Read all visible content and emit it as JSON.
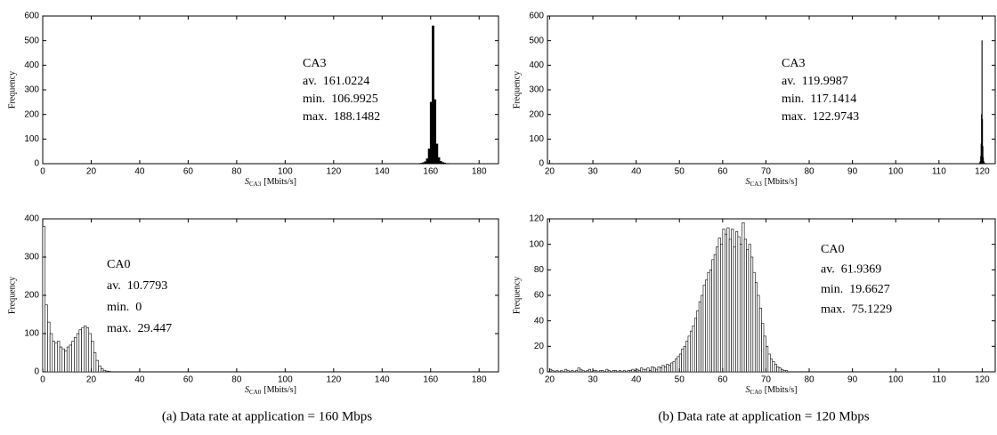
{
  "captions": [
    "(a) Data rate at application = 160 Mbps",
    "(b) Data rate at application = 120 Mbps"
  ],
  "chart_data": [
    {
      "type": "histogram",
      "ylabel": "Frequency",
      "xlabel_symbol": "S",
      "xlabel_subscript": "CA3",
      "xlabel_unit": "[Mbits/s]",
      "annotations": [
        "CA3",
        "av.  161.0224",
        "min.  106.9925",
        "max.  188.1482"
      ],
      "xlim": [
        0,
        188
      ],
      "ylim": [
        0,
        600
      ],
      "xticks": [
        0,
        20,
        40,
        60,
        80,
        100,
        120,
        140,
        160,
        180
      ],
      "yticks": [
        0,
        100,
        200,
        300,
        400,
        500,
        600
      ],
      "color": "#000000",
      "edgecolor": "#000000",
      "bins": [
        155,
        155.8,
        156.6,
        157.4,
        158.2,
        159,
        159.8,
        160.6,
        161.4,
        162.2,
        163,
        163.8,
        164.6,
        165.4,
        166.2,
        167,
        167.8
      ],
      "values": [
        1,
        2,
        4,
        8,
        20,
        60,
        250,
        560,
        260,
        80,
        25,
        10,
        5,
        3,
        1,
        1
      ]
    },
    {
      "type": "histogram",
      "ylabel": "Frequency",
      "xlabel_symbol": "S",
      "xlabel_subscript": "CA3",
      "xlabel_unit": "[Mbits/s]",
      "annotations": [
        "CA3",
        "av.  119.9987",
        "min.  117.1414",
        "max.  122.9743"
      ],
      "xlim": [
        19.5,
        123
      ],
      "ylim": [
        0,
        600
      ],
      "xticks": [
        20,
        30,
        40,
        50,
        60,
        70,
        80,
        90,
        100,
        110,
        120
      ],
      "yticks": [
        0,
        100,
        200,
        300,
        400,
        500,
        600
      ],
      "color": "#000000",
      "edgecolor": "#000000",
      "bins": [
        119.2,
        119.3,
        119.4,
        119.5,
        119.6,
        119.7,
        119.8,
        119.9,
        120,
        120.1,
        120.2,
        120.3,
        120.4,
        120.5,
        120.6,
        120.7,
        120.8
      ],
      "values": [
        1,
        2,
        5,
        10,
        30,
        80,
        200,
        500,
        180,
        70,
        25,
        10,
        4,
        2,
        1,
        1
      ]
    },
    {
      "type": "histogram",
      "ylabel": "Frequency",
      "xlabel_symbol": "S",
      "xlabel_subscript": "CA0",
      "xlabel_unit": "[Mbits/s]",
      "annotations": [
        "CA0",
        "av.  10.7793",
        "min.  0",
        "max.  29.447"
      ],
      "xlim": [
        0,
        188
      ],
      "ylim": [
        0,
        400
      ],
      "xticks": [
        0,
        20,
        40,
        60,
        80,
        100,
        120,
        140,
        160,
        180
      ],
      "yticks": [
        0,
        100,
        200,
        300,
        400
      ],
      "color": "#ffffff",
      "edgecolor": "#000000",
      "bins": [
        0,
        1,
        2,
        3,
        4,
        5,
        6,
        7,
        8,
        9,
        10,
        11,
        12,
        13,
        14,
        15,
        16,
        17,
        18,
        19,
        20,
        21,
        22,
        23,
        24,
        25,
        26,
        27,
        28
      ],
      "values": [
        380,
        175,
        130,
        100,
        80,
        75,
        80,
        65,
        60,
        55,
        65,
        70,
        80,
        90,
        100,
        110,
        115,
        120,
        115,
        100,
        80,
        50,
        30,
        15,
        8,
        4,
        2,
        1
      ]
    },
    {
      "type": "histogram",
      "ylabel": "Frequency",
      "xlabel_symbol": "S",
      "xlabel_subscript": "CA0",
      "xlabel_unit": "[Mbits/s]",
      "annotations": [
        "CA0",
        "av.  61.9369",
        "min.  19.6627",
        "max.  75.1229"
      ],
      "xlim": [
        19.5,
        123
      ],
      "ylim": [
        0,
        120
      ],
      "xticks": [
        20,
        30,
        40,
        50,
        60,
        70,
        80,
        90,
        100,
        110,
        120
      ],
      "yticks": [
        0,
        20,
        40,
        60,
        80,
        100,
        120
      ],
      "color": "#ffffff",
      "edgecolor": "#000000",
      "bins": [
        20,
        20.5,
        21,
        21.5,
        22,
        22.5,
        23,
        23.5,
        24,
        24.5,
        25,
        25.5,
        26,
        26.5,
        27,
        27.5,
        28,
        28.5,
        29,
        29.5,
        30,
        30.5,
        31,
        31.5,
        32,
        32.5,
        33,
        33.5,
        34,
        34.5,
        35,
        35.5,
        36,
        36.5,
        37,
        37.5,
        38,
        38.5,
        39,
        39.5,
        40,
        40.5,
        41,
        41.5,
        42,
        42.5,
        43,
        43.5,
        44,
        44.5,
        45,
        45.5,
        46,
        46.5,
        47,
        47.5,
        48,
        48.5,
        49,
        49.5,
        50,
        50.5,
        51,
        51.5,
        52,
        52.5,
        53,
        53.5,
        54,
        54.5,
        55,
        55.5,
        56,
        56.5,
        57,
        57.5,
        58,
        58.5,
        59,
        59.5,
        60,
        60.5,
        61,
        61.5,
        62,
        62.5,
        63,
        63.5,
        64,
        64.5,
        65,
        65.5,
        66,
        66.5,
        67,
        67.5,
        68,
        68.5,
        69,
        69.5,
        70,
        70.5,
        71,
        71.5,
        72,
        72.5,
        73,
        73.5,
        74,
        74.5,
        75
      ],
      "values": [
        2,
        1,
        0,
        1,
        0,
        1,
        0,
        2,
        1,
        0,
        1,
        0,
        1,
        3,
        2,
        1,
        0,
        1,
        2,
        0,
        1,
        1,
        0,
        1,
        1,
        0,
        2,
        1,
        0,
        1,
        1,
        0,
        1,
        0,
        1,
        0,
        1,
        1,
        2,
        1,
        2,
        1,
        3,
        2,
        2,
        3,
        1,
        4,
        3,
        2,
        4,
        3,
        5,
        4,
        6,
        5,
        7,
        8,
        10,
        12,
        14,
        18,
        20,
        24,
        28,
        32,
        36,
        42,
        48,
        55,
        60,
        68,
        72,
        78,
        80,
        88,
        92,
        98,
        105,
        100,
        112,
        108,
        113,
        104,
        112,
        98,
        110,
        106,
        100,
        117,
        104,
        96,
        100,
        90,
        78,
        70,
        60,
        50,
        38,
        28,
        20,
        14,
        10,
        8,
        6,
        4,
        3,
        2,
        1,
        1
      ]
    }
  ]
}
